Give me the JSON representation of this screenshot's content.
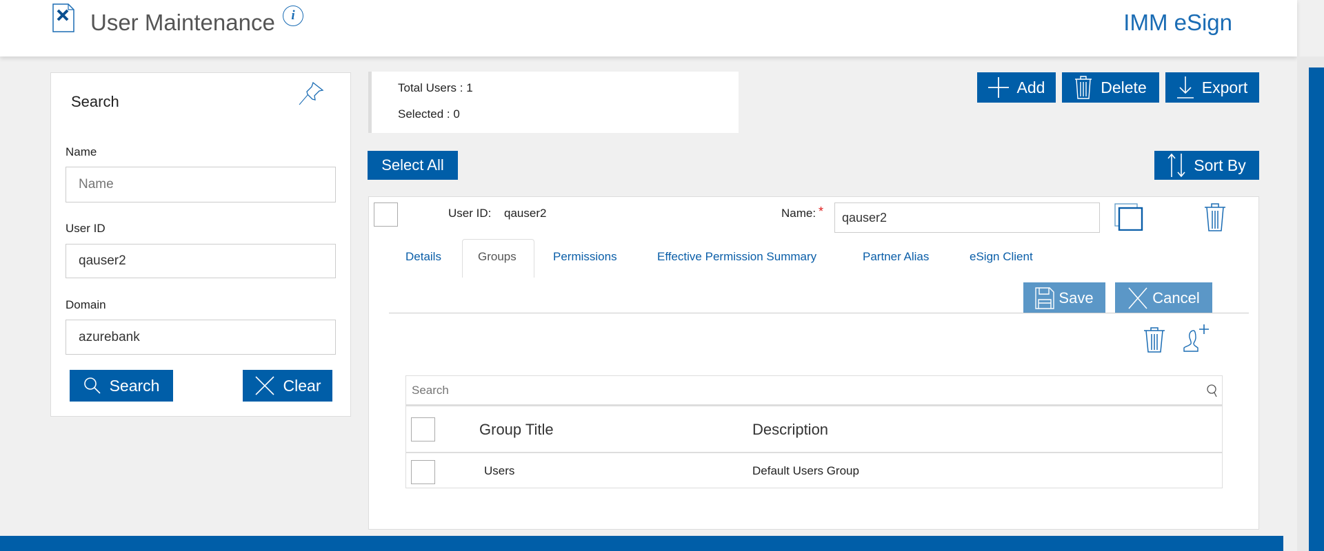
{
  "header": {
    "title": "User Maintenance",
    "brand": "IMM eSign"
  },
  "search_panel": {
    "title": "Search",
    "name_label": "Name",
    "name_placeholder": "Name",
    "name_value": "",
    "userid_label": "User ID",
    "userid_value": "qauser2",
    "domain_label": "Domain",
    "domain_value": "azurebank",
    "search_button": "Search",
    "clear_button": "Clear"
  },
  "stats": {
    "total_users": "Total Users : 1",
    "selected": "Selected : 0"
  },
  "toolbar": {
    "add": "Add",
    "delete": "Delete",
    "export": "Export",
    "select_all": "Select All",
    "sort_by": "Sort By"
  },
  "user_card": {
    "userid_label": "User ID:",
    "userid_value": "qauser2",
    "name_label": "Name:",
    "required_mark": "*",
    "name_value": "qauser2",
    "tabs": [
      {
        "label": "Details"
      },
      {
        "label": "Groups",
        "active": true
      },
      {
        "label": "Permissions"
      },
      {
        "label": "Effective Permission Summary"
      },
      {
        "label": "Partner Alias"
      },
      {
        "label": "eSign Client"
      }
    ],
    "save": "Save",
    "cancel": "Cancel"
  },
  "groups_table": {
    "search_placeholder": "Search",
    "columns": [
      "Group Title",
      "Description"
    ],
    "rows": [
      {
        "title": "Users",
        "description": "Default Users Group"
      }
    ]
  },
  "colors": {
    "primary": "#005ea8",
    "secondary_button": "#5b97c7",
    "required": "#e02020"
  }
}
